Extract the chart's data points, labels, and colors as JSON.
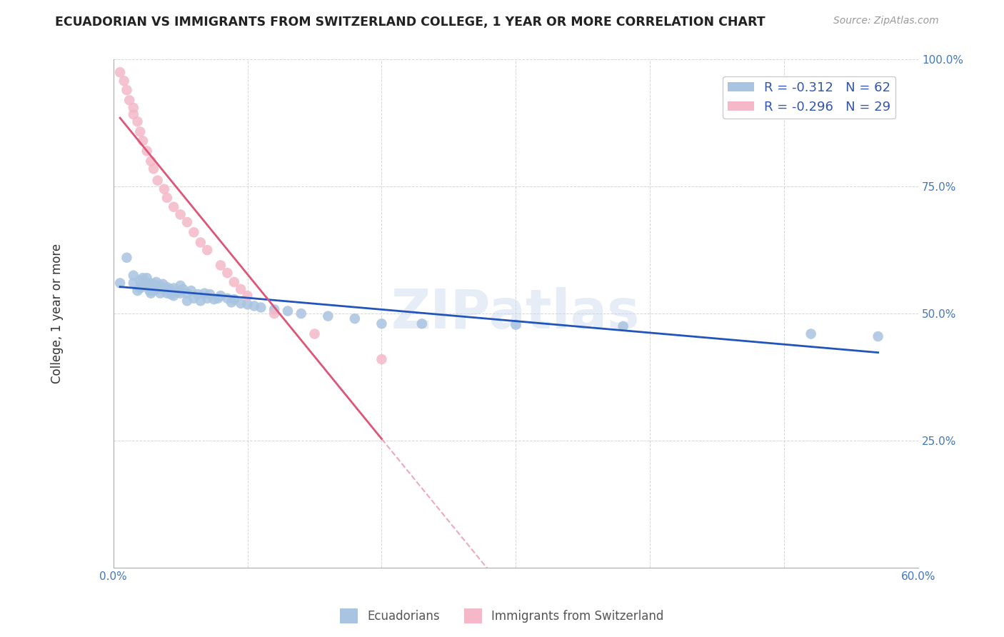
{
  "title": "ECUADORIAN VS IMMIGRANTS FROM SWITZERLAND COLLEGE, 1 YEAR OR MORE CORRELATION CHART",
  "source": "Source: ZipAtlas.com",
  "ylabel": "College, 1 year or more",
  "xlim": [
    0.0,
    0.6
  ],
  "ylim": [
    0.0,
    1.0
  ],
  "blue_R": -0.312,
  "blue_N": 62,
  "pink_R": -0.296,
  "pink_N": 29,
  "blue_color": "#a8c4e0",
  "pink_color": "#f4b8c8",
  "blue_line_color": "#2255bb",
  "pink_line_color": "#dd5577",
  "watermark": "ZIPatlas",
  "ecuadorians_x": [
    0.005,
    0.01,
    0.015,
    0.015,
    0.018,
    0.02,
    0.02,
    0.022,
    0.022,
    0.025,
    0.025,
    0.027,
    0.027,
    0.028,
    0.03,
    0.03,
    0.032,
    0.033,
    0.035,
    0.035,
    0.037,
    0.038,
    0.04,
    0.04,
    0.042,
    0.043,
    0.045,
    0.045,
    0.048,
    0.05,
    0.05,
    0.052,
    0.055,
    0.055,
    0.058,
    0.06,
    0.063,
    0.065,
    0.068,
    0.07,
    0.072,
    0.075,
    0.078,
    0.08,
    0.085,
    0.088,
    0.09,
    0.095,
    0.1,
    0.105,
    0.11,
    0.12,
    0.13,
    0.14,
    0.16,
    0.18,
    0.2,
    0.23,
    0.3,
    0.38,
    0.52,
    0.57
  ],
  "ecuadorians_y": [
    0.56,
    0.61,
    0.575,
    0.56,
    0.545,
    0.565,
    0.55,
    0.57,
    0.555,
    0.57,
    0.555,
    0.56,
    0.545,
    0.54,
    0.558,
    0.545,
    0.562,
    0.548,
    0.555,
    0.54,
    0.558,
    0.548,
    0.552,
    0.54,
    0.548,
    0.538,
    0.55,
    0.535,
    0.542,
    0.555,
    0.54,
    0.548,
    0.54,
    0.525,
    0.545,
    0.53,
    0.538,
    0.525,
    0.54,
    0.53,
    0.538,
    0.528,
    0.53,
    0.535,
    0.53,
    0.522,
    0.528,
    0.52,
    0.518,
    0.515,
    0.512,
    0.508,
    0.505,
    0.5,
    0.495,
    0.49,
    0.48,
    0.48,
    0.478,
    0.475,
    0.46,
    0.455
  ],
  "switzerland_x": [
    0.005,
    0.008,
    0.01,
    0.012,
    0.015,
    0.015,
    0.018,
    0.02,
    0.022,
    0.025,
    0.028,
    0.03,
    0.033,
    0.038,
    0.04,
    0.045,
    0.05,
    0.055,
    0.06,
    0.065,
    0.07,
    0.08,
    0.085,
    0.09,
    0.095,
    0.1,
    0.12,
    0.15,
    0.2
  ],
  "switzerland_y": [
    0.975,
    0.958,
    0.94,
    0.92,
    0.905,
    0.892,
    0.878,
    0.858,
    0.84,
    0.82,
    0.8,
    0.785,
    0.762,
    0.745,
    0.728,
    0.71,
    0.695,
    0.68,
    0.66,
    0.64,
    0.625,
    0.595,
    0.58,
    0.562,
    0.548,
    0.535,
    0.5,
    0.46,
    0.41
  ]
}
